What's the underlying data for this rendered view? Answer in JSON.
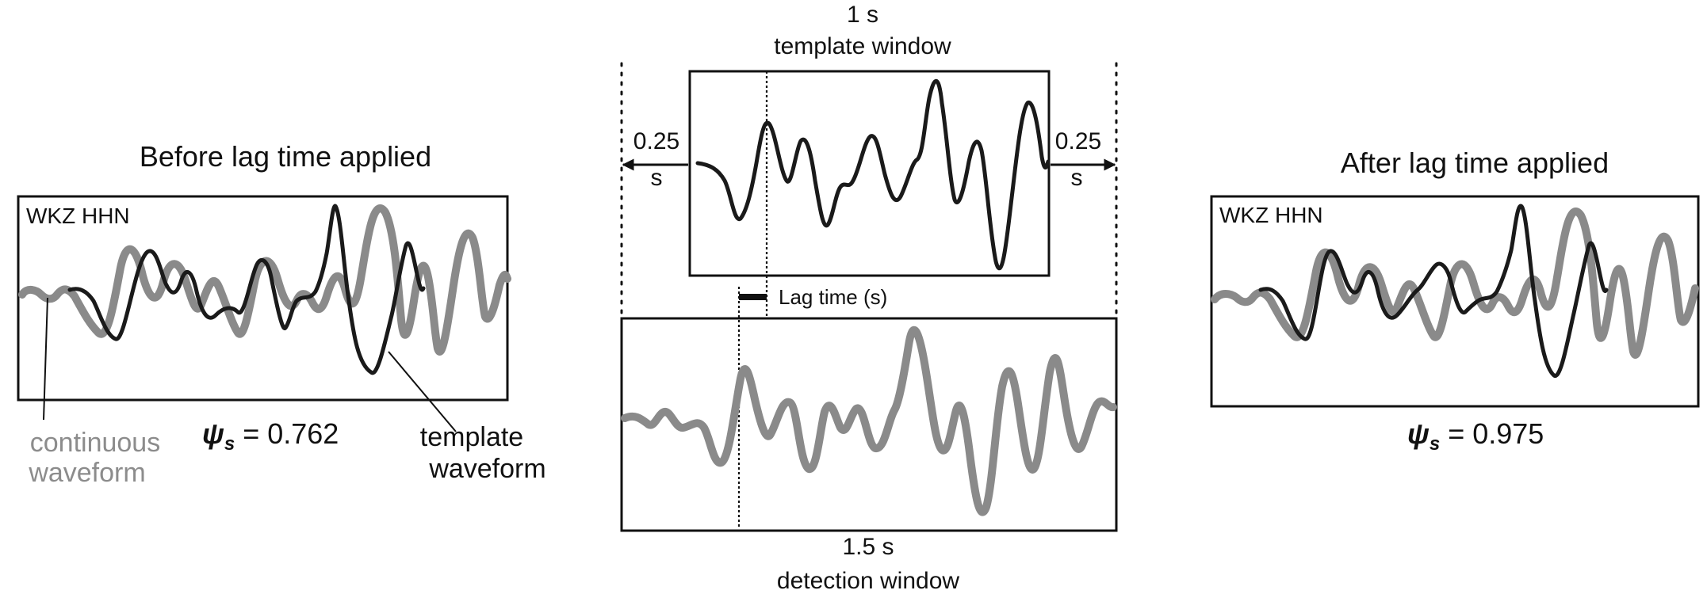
{
  "left_panel": {
    "title": "Before lag time applied",
    "station": "WKZ HHN",
    "psi_symbol": "ψ",
    "psi_sub": "s",
    "psi_value": "= 0.762",
    "label_continuous_1": "continuous",
    "label_continuous_2": "waveform",
    "label_template_1": "template",
    "label_template_2": "waveform"
  },
  "center_panel": {
    "top_duration": "1 s",
    "top_caption": "template window",
    "left_extension": "0.25",
    "left_extension_unit": "s",
    "right_extension": "0.25",
    "right_extension_unit": "s",
    "lag_label": "Lag time (s)",
    "bottom_duration": "1.5 s",
    "bottom_caption": "detection window"
  },
  "right_panel": {
    "title": "After lag time applied",
    "station": "WKZ HHN",
    "psi_symbol": "ψ",
    "psi_sub": "s",
    "psi_value": "= 0.975"
  },
  "colors": {
    "continuous_waveform": "#8a8a8a",
    "template_waveform": "#1a1a1a",
    "frame": "#111111"
  }
}
